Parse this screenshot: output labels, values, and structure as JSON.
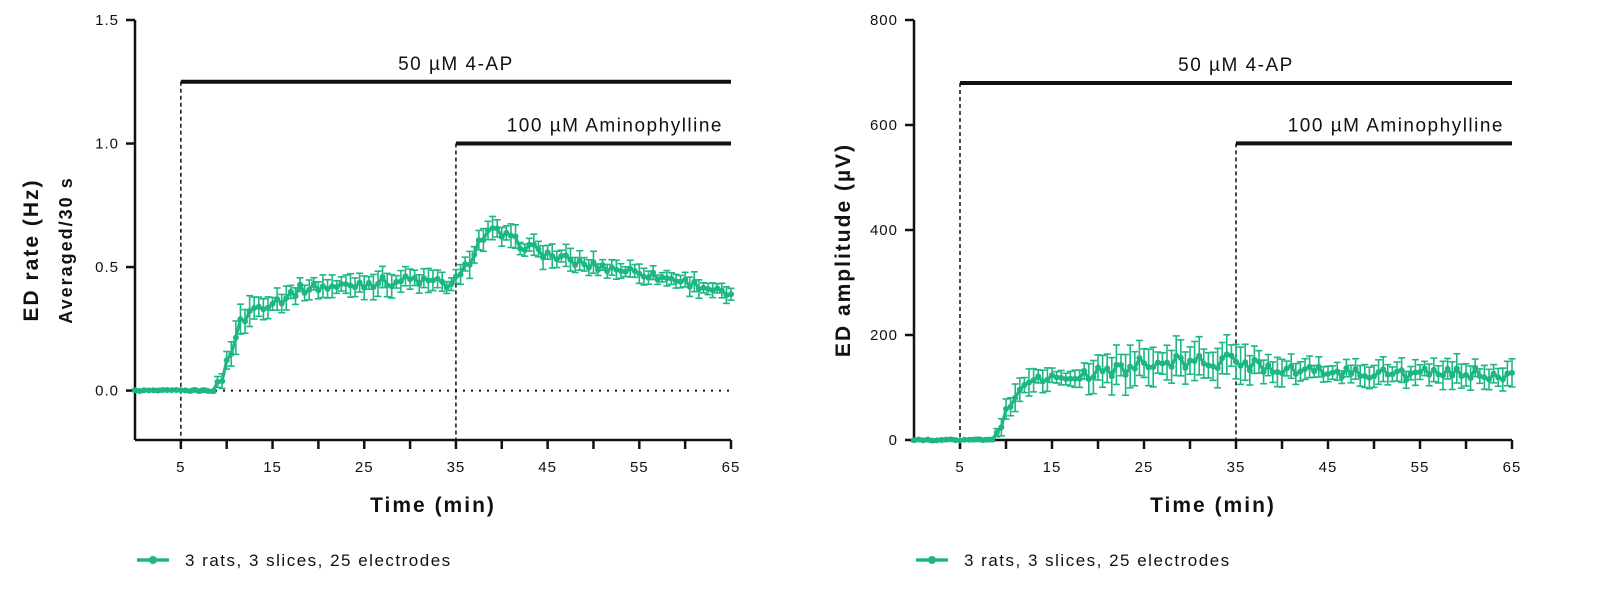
{
  "chart_data": [
    {
      "type": "line",
      "panel": "left",
      "xlabel": "Time (min)",
      "ylabel": "ED rate (Hz)",
      "ylabel2": "Averaged/30 s",
      "xlim": [
        0,
        65
      ],
      "ylim": [
        -0.2,
        1.5
      ],
      "xticks": [
        5,
        15,
        25,
        35,
        45,
        55,
        65
      ],
      "yticks": [
        0.0,
        0.5,
        1.0,
        1.5
      ],
      "ytick_labels": [
        "0.0",
        "0.5",
        "1.0",
        "1.5"
      ],
      "baseline": 0.0,
      "annotations": [
        {
          "label": "50 µM 4-AP",
          "x_start": 5,
          "x_end": 65,
          "y": 1.25
        },
        {
          "label": "100 µM Aminophylline",
          "x_start": 35,
          "x_end": 65,
          "y": 1.0
        }
      ],
      "series": [
        {
          "name": "3 rats, 3 slices, 25 electrodes",
          "color": "#1db784",
          "knots": [
            [
              0,
              0.0
            ],
            [
              8.5,
              0.0
            ],
            [
              9.5,
              0.05
            ],
            [
              10.5,
              0.17
            ],
            [
              11.5,
              0.27
            ],
            [
              12.5,
              0.32
            ],
            [
              14,
              0.35
            ],
            [
              16,
              0.37
            ],
            [
              18,
              0.41
            ],
            [
              20,
              0.42
            ],
            [
              22,
              0.42
            ],
            [
              24,
              0.43
            ],
            [
              26,
              0.44
            ],
            [
              28,
              0.44
            ],
            [
              30,
              0.45
            ],
            [
              32,
              0.44
            ],
            [
              34.5,
              0.43
            ],
            [
              35.5,
              0.46
            ],
            [
              36.5,
              0.53
            ],
            [
              37.5,
              0.6
            ],
            [
              38.5,
              0.64
            ],
            [
              39.5,
              0.64
            ],
            [
              41,
              0.61
            ],
            [
              43,
              0.58
            ],
            [
              45,
              0.55
            ],
            [
              47,
              0.53
            ],
            [
              49,
              0.51
            ],
            [
              51,
              0.5
            ],
            [
              53,
              0.49
            ],
            [
              55,
              0.48
            ],
            [
              57,
              0.46
            ],
            [
              59,
              0.45
            ],
            [
              61,
              0.43
            ],
            [
              63,
              0.41
            ],
            [
              65,
              0.38
            ]
          ],
          "error_knots": [
            [
              0,
              0.004
            ],
            [
              8.5,
              0.006
            ],
            [
              10,
              0.05
            ],
            [
              12,
              0.05
            ],
            [
              16,
              0.035
            ],
            [
              20,
              0.035
            ],
            [
              26,
              0.04
            ],
            [
              32,
              0.035
            ],
            [
              36,
              0.04
            ],
            [
              40,
              0.04
            ],
            [
              46,
              0.035
            ],
            [
              55,
              0.03
            ],
            [
              65,
              0.028
            ]
          ]
        }
      ]
    },
    {
      "type": "line",
      "panel": "right",
      "xlabel": "Time (min)",
      "ylabel": "ED amplitude (µV)",
      "xlim": [
        0,
        65
      ],
      "ylim": [
        0,
        800
      ],
      "xticks": [
        5,
        15,
        25,
        35,
        45,
        55,
        65
      ],
      "yticks": [
        0,
        200,
        400,
        600,
        800
      ],
      "ytick_labels": [
        "0",
        "200",
        "400",
        "600",
        "800"
      ],
      "annotations": [
        {
          "label": "50 µM 4-AP",
          "x_start": 5,
          "x_end": 65,
          "y": 680
        },
        {
          "label": "100 µM Aminophylline",
          "x_start": 35,
          "x_end": 65,
          "y": 565
        }
      ],
      "series": [
        {
          "name": "3 rats, 3 slices, 25 electrodes",
          "color": "#1db784",
          "knots": [
            [
              0,
              0
            ],
            [
              8.5,
              0
            ],
            [
              9.5,
              30
            ],
            [
              10.5,
              70
            ],
            [
              11.5,
              100
            ],
            [
              12.5,
              113
            ],
            [
              14,
              118
            ],
            [
              16,
              117
            ],
            [
              18,
              120
            ],
            [
              20,
              128
            ],
            [
              22,
              135
            ],
            [
              24,
              140
            ],
            [
              26,
              143
            ],
            [
              28,
              145
            ],
            [
              30,
              148
            ],
            [
              32,
              150
            ],
            [
              34,
              150
            ],
            [
              36,
              147
            ],
            [
              38,
              142
            ],
            [
              40,
              137
            ],
            [
              42,
              133
            ],
            [
              45,
              130
            ],
            [
              48,
              128
            ],
            [
              51,
              127
            ],
            [
              54,
              125
            ],
            [
              57,
              126
            ],
            [
              60,
              127
            ],
            [
              63,
              126
            ],
            [
              65,
              125
            ]
          ],
          "error_knots": [
            [
              0,
              2
            ],
            [
              8.5,
              3
            ],
            [
              10,
              22
            ],
            [
              13,
              18
            ],
            [
              16,
              15
            ],
            [
              20,
              24
            ],
            [
              25,
              33
            ],
            [
              30,
              30
            ],
            [
              35,
              30
            ],
            [
              40,
              20
            ],
            [
              45,
              18
            ],
            [
              55,
              20
            ],
            [
              65,
              20
            ]
          ]
        }
      ]
    }
  ]
}
